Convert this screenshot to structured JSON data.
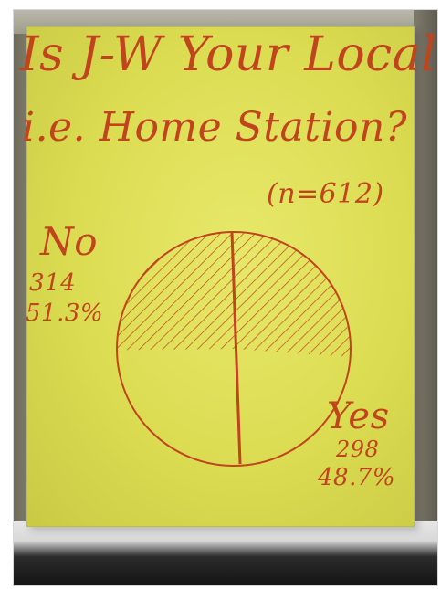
{
  "poster": {
    "title_line1": "Is J-W Your Local",
    "title_line2": "i.e. Home Station?",
    "sample_note": "(n=612)"
  },
  "colors": {
    "poster": "#dcdc52",
    "ink": "#c0441e"
  },
  "chart_data": {
    "type": "pie",
    "title": "Is J-W Your Local i.e. Home Station?",
    "note": "(n=612)",
    "slices": [
      {
        "label": "No",
        "count": "314",
        "percent": "51.3%",
        "value": 51.3,
        "fill": "hatched"
      },
      {
        "label": "Yes",
        "count": "298",
        "percent": "48.7%",
        "value": 48.7,
        "fill": "plain"
      }
    ]
  }
}
